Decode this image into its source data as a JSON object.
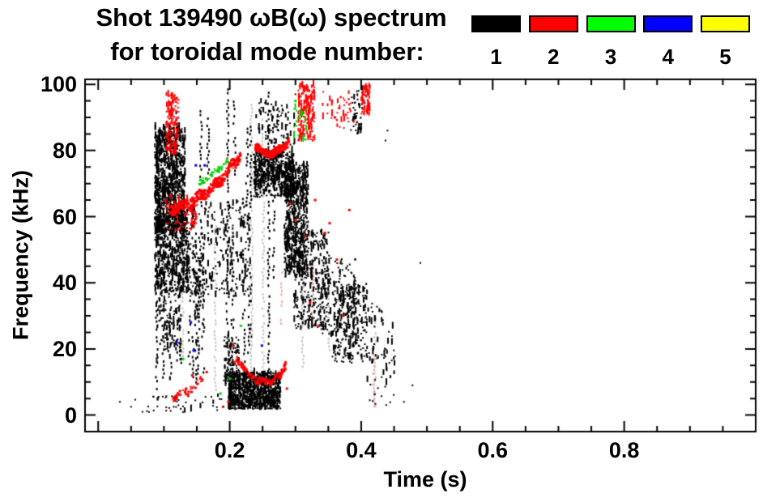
{
  "figure": {
    "title_line1": "Shot 139490 ωB(ω) spectrum",
    "title_line2": "for toroidal mode number:"
  },
  "legend": {
    "entries": [
      {
        "label": "1",
        "color": "#000000"
      },
      {
        "label": "2",
        "color": "#ff0000"
      },
      {
        "label": "3",
        "color": "#00ff00"
      },
      {
        "label": "4",
        "color": "#0000ff"
      },
      {
        "label": "5",
        "color": "#ffff00"
      }
    ]
  },
  "chart_data": {
    "type": "scatter",
    "title": "Shot 139490 ωB(ω) spectrum",
    "subtitle": "for toroidal mode number: 1 2 3 4 5",
    "xlabel": "Time (s)",
    "ylabel": "Frequency (kHz)",
    "xlim": [
      -0.02,
      1.0
    ],
    "ylim": [
      -5,
      101.5
    ],
    "grid": false,
    "legend_position": "top-right-of-title",
    "x_ticks": {
      "labeled": [
        {
          "v": 0.2,
          "label": "0.2"
        },
        {
          "v": 0.4,
          "label": "0.4"
        },
        {
          "v": 0.6,
          "label": "0.6"
        },
        {
          "v": 0.8,
          "label": "0.8"
        }
      ],
      "major": [
        0,
        0.2,
        0.4,
        0.6,
        0.8
      ],
      "minor_step": 0.05
    },
    "y_ticks": {
      "labeled": [
        {
          "v": 0,
          "label": "0"
        },
        {
          "v": 20,
          "label": "20"
        },
        {
          "v": 40,
          "label": "40"
        },
        {
          "v": 60,
          "label": "60"
        },
        {
          "v": 80,
          "label": "80"
        },
        {
          "v": 100,
          "label": "100"
        }
      ],
      "major": [
        0,
        20,
        40,
        60,
        80,
        100
      ],
      "minor_step": 5
    },
    "series": [
      {
        "name": "artifact-faint-streaks",
        "color": "#c6c6c6",
        "clusters": [
          {
            "type": "vlines",
            "drop": 0.25,
            "lines": [
              {
                "t": 0.128,
                "f": [
                  15,
                  70
                ]
              },
              {
                "t": 0.177,
                "f": [
                  8,
                  60
                ]
              },
              {
                "t": 0.232,
                "f": [
                  5,
                  95
                ]
              },
              {
                "t": 0.25,
                "f": [
                  5,
                  90
                ]
              },
              {
                "t": 0.31,
                "f": [
                  15,
                  60
                ]
              },
              {
                "t": 0.35,
                "f": [
                  20,
                  45
                ]
              },
              {
                "t": 0.42,
                "f": [
                  3,
                  30
                ]
              }
            ]
          }
        ]
      },
      {
        "name": "artifact-pink-streaks",
        "color": "#f2a8a8",
        "clusters": [
          {
            "type": "vlines",
            "drop": 0.2,
            "lines": [
              {
                "t": 0.278,
                "f": [
                  28,
                  46
                ]
              },
              {
                "t": 0.325,
                "f": [
                  28,
                  47
                ]
              },
              {
                "t": 0.418,
                "f": [
                  3,
                  20
                ]
              }
            ]
          }
        ]
      },
      {
        "name": "mode-1",
        "color": "#000000",
        "clusters": [
          {
            "type": "blob",
            "t": [
              0.085,
              0.131
            ],
            "f": [
              55,
              87
            ],
            "n": 950,
            "smear": 0.45
          },
          {
            "type": "blob",
            "t": [
              0.085,
              0.136
            ],
            "f": [
              37,
              60
            ],
            "n": 520,
            "smear": 0.45
          },
          {
            "type": "blob",
            "t": [
              0.09,
              0.125
            ],
            "f": [
              20,
              40
            ],
            "n": 90,
            "smear": 0.5
          },
          {
            "type": "streaks",
            "t": [
              0.088,
              0.135
            ],
            "ftop": [
              28,
              48
            ],
            "fbot": [
              4,
              18
            ],
            "k": 9,
            "drop": 0.45
          },
          {
            "type": "streaks",
            "t": [
              0.135,
              0.232
            ],
            "ftop": [
              42,
              66
            ],
            "fbot": [
              6,
              26
            ],
            "k": 16,
            "drop": 0.5
          },
          {
            "type": "blob",
            "t": [
              0.133,
              0.23
            ],
            "f": [
              36,
              66
            ],
            "n": 260,
            "smear": 0.5
          },
          {
            "type": "vlines",
            "drop": 0.3,
            "lines": [
              {
                "t": 0.118,
                "f": [
                  84,
                  96
                ]
              },
              {
                "t": 0.155,
                "f": [
                  57,
                  93
                ]
              },
              {
                "t": 0.166,
                "f": [
                  68,
                  92
                ]
              },
              {
                "t": 0.196,
                "f": [
                  35,
                  100
                ]
              },
              {
                "t": 0.206,
                "f": [
                  72,
                  96
                ]
              },
              {
                "t": 0.225,
                "f": [
                  55,
                  90
                ]
              },
              {
                "t": 0.231,
                "f": [
                  60,
                  88
                ]
              },
              {
                "t": 0.258,
                "f": [
                  12,
                  100
                ]
              },
              {
                "t": 0.266,
                "f": [
                  42,
                  97
                ]
              }
            ]
          },
          {
            "type": "blob",
            "t": [
              0.235,
              0.296
            ],
            "f": [
              66,
              80
            ],
            "n": 560,
            "smear": 0.35
          },
          {
            "type": "blob",
            "t": [
              0.237,
              0.3
            ],
            "f": [
              82,
              95
            ],
            "n": 80,
            "smear": 0.5
          },
          {
            "type": "blob",
            "t": [
              0.282,
              0.318
            ],
            "f": [
              42,
              76
            ],
            "n": 620,
            "smear": 0.4
          },
          {
            "type": "blob",
            "t": [
              0.296,
              0.35
            ],
            "f": [
              26,
              56
            ],
            "n": 330,
            "smear": 0.4
          },
          {
            "type": "blob",
            "t": [
              0.34,
              0.39
            ],
            "f": [
              24,
              48
            ],
            "n": 150,
            "smear": 0.35
          },
          {
            "type": "blob",
            "t": [
              0.355,
              0.408
            ],
            "f": [
              16,
              40
            ],
            "n": 260,
            "smear": 0.35
          },
          {
            "type": "blob",
            "t": [
              0.197,
              0.276
            ],
            "f": [
              2,
              13
            ],
            "n": 1050,
            "smear": 0.3
          },
          {
            "type": "blob",
            "t": [
              0.19,
              0.213
            ],
            "f": [
              9,
              24
            ],
            "n": 130,
            "smear": 0.3
          },
          {
            "type": "blob",
            "t": [
              0.383,
              0.401
            ],
            "f": [
              85,
              99
            ],
            "n": 45,
            "smear": 0.4
          },
          {
            "type": "blob",
            "t": [
              0.408,
              0.452
            ],
            "f": [
              3,
              34
            ],
            "n": 70,
            "smear": 0.45
          },
          {
            "type": "blob",
            "t": [
              0.04,
              0.19
            ],
            "f": [
              1,
              6
            ],
            "n": 45,
            "smear": 0.15
          },
          {
            "type": "dots",
            "size": 2,
            "pts": [
              [
                0.033,
                4
              ],
              [
                0.05,
                2.5
              ],
              [
                0.3,
                97
              ],
              [
                0.315,
                93
              ],
              [
                0.437,
                83
              ],
              [
                0.44,
                86
              ],
              [
                0.465,
                4
              ],
              [
                0.478,
                9
              ],
              [
                0.49,
                46
              ]
            ]
          }
        ]
      },
      {
        "name": "mode-2",
        "color": "#ff0000",
        "clusters": [
          {
            "type": "blob",
            "t": [
              0.102,
              0.121
            ],
            "f": [
              79,
              97
            ],
            "n": 140,
            "smear": 0.5
          },
          {
            "type": "band",
            "path": [
              [
                0.107,
                62
              ],
              [
                0.128,
                63.5
              ],
              [
                0.15,
                66
              ],
              [
                0.172,
                69
              ],
              [
                0.194,
                73.5
              ],
              [
                0.215,
                79
              ]
            ],
            "thick": 3,
            "n": 430,
            "wig": 1.2
          },
          {
            "type": "blob",
            "t": [
              0.1,
              0.152
            ],
            "f": [
              56,
              66
            ],
            "n": 80,
            "smear": 0.3
          },
          {
            "type": "band",
            "path": [
              [
                0.237,
                82
              ],
              [
                0.25,
                79.5
              ],
              [
                0.263,
                79.5
              ],
              [
                0.276,
                80.5
              ],
              [
                0.289,
                83.5
              ]
            ],
            "thick": 2.4,
            "n": 230,
            "wig": 0.8
          },
          {
            "type": "blob",
            "t": [
              0.303,
              0.328
            ],
            "f": [
              83,
              100
            ],
            "n": 170,
            "smear": 0.55
          },
          {
            "type": "blob",
            "t": [
              0.34,
              0.388
            ],
            "f": [
              87,
              98
            ],
            "n": 45,
            "smear": 0.45
          },
          {
            "type": "blob",
            "t": [
              0.399,
              0.412
            ],
            "f": [
              91,
              100
            ],
            "n": 75,
            "smear": 0.5
          },
          {
            "type": "band",
            "path": [
              [
                0.112,
                5.5
              ],
              [
                0.134,
                7.5
              ],
              [
                0.157,
                11
              ]
            ],
            "thick": 2,
            "n": 80,
            "wig": 0.7,
            "drop": 0.35
          },
          {
            "type": "band",
            "path": [
              [
                0.208,
                18
              ],
              [
                0.224,
                13
              ],
              [
                0.243,
                10.5
              ],
              [
                0.261,
                10.5
              ],
              [
                0.275,
                12
              ],
              [
                0.284,
                16
              ]
            ],
            "thick": 2,
            "n": 180,
            "wig": 0.6
          },
          {
            "type": "dots",
            "size": 3,
            "pts": [
              [
                0.143,
                12
              ],
              [
                0.165,
                13
              ],
              [
                0.19,
                2.5
              ],
              [
                0.198,
                4
              ],
              [
                0.205,
                21
              ],
              [
                0.207,
                16
              ],
              [
                0.287,
                8
              ],
              [
                0.292,
                64
              ],
              [
                0.3,
                59
              ],
              [
                0.315,
                54
              ],
              [
                0.322,
                34
              ],
              [
                0.33,
                65
              ],
              [
                0.335,
                27
              ],
              [
                0.345,
                55
              ],
              [
                0.352,
                58
              ],
              [
                0.36,
                90
              ],
              [
                0.363,
                47
              ],
              [
                0.372,
                30
              ],
              [
                0.382,
                62
              ]
            ]
          }
        ]
      },
      {
        "name": "mode-3",
        "color": "#00d400",
        "clusters": [
          {
            "type": "band",
            "path": [
              [
                0.152,
                70.5
              ],
              [
                0.168,
                72.5
              ],
              [
                0.184,
                75
              ],
              [
                0.197,
                77
              ]
            ],
            "thick": 1.6,
            "n": 70,
            "wig": 0.5,
            "drop": 0.4
          },
          {
            "type": "blob",
            "t": [
              0.296,
              0.316
            ],
            "f": [
              83,
              93
            ],
            "n": 24,
            "smear": 0.3
          },
          {
            "type": "dots",
            "size": 3,
            "pts": [
              [
                0.129,
                17
              ],
              [
                0.186,
                6.5
              ],
              [
                0.2,
                11
              ],
              [
                0.217,
                27
              ],
              [
                0.3,
                95
              ]
            ]
          }
        ]
      },
      {
        "name": "mode-4",
        "color": "#0000ff",
        "clusters": [
          {
            "type": "dots",
            "size": 3,
            "pts": [
              [
                0.119,
                22
              ],
              [
                0.141,
                28
              ],
              [
                0.145,
                19.5
              ],
              [
                0.1485,
                75.5
              ],
              [
                0.162,
                75.5
              ],
              [
                0.249,
                21
              ]
            ]
          }
        ]
      },
      {
        "name": "mode-5",
        "color": "#ffff00",
        "clusters": []
      }
    ]
  }
}
